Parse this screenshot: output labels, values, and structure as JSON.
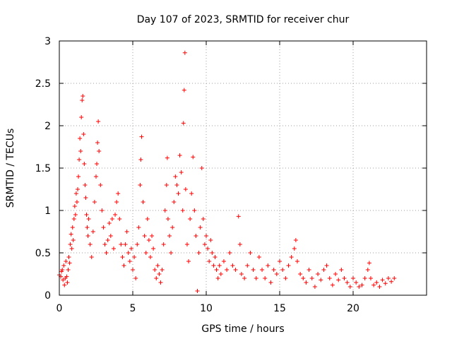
{
  "chart_data": {
    "type": "scatter",
    "title": "Day 107 of 2023, SRMTID for receiver chur",
    "xlabel": "GPS time / hours",
    "ylabel": "SRMTID / TECUs",
    "xlim": [
      0,
      25
    ],
    "ylim": [
      0,
      3
    ],
    "xticks": [
      0,
      5,
      10,
      15,
      20
    ],
    "yticks": [
      0,
      0.5,
      1,
      1.5,
      2,
      2.5,
      3
    ],
    "xtick_labels": [
      "0",
      "5",
      "10",
      "15",
      "20"
    ],
    "ytick_labels": [
      "0",
      "0.5",
      "1",
      "1.5",
      "2",
      "2.5",
      "3"
    ],
    "grid": true,
    "marker": "+",
    "color": "#ff0000",
    "series": [
      {
        "name": "SRMTID",
        "points": [
          [
            0.0,
            0.24
          ],
          [
            0.1,
            0.22
          ],
          [
            0.15,
            0.28
          ],
          [
            0.2,
            0.3
          ],
          [
            0.25,
            0.18
          ],
          [
            0.3,
            0.35
          ],
          [
            0.35,
            0.12
          ],
          [
            0.4,
            0.2
          ],
          [
            0.45,
            0.4
          ],
          [
            0.5,
            0.22
          ],
          [
            0.55,
            0.15
          ],
          [
            0.6,
            0.3
          ],
          [
            0.65,
            0.45
          ],
          [
            0.7,
            0.38
          ],
          [
            0.75,
            0.6
          ],
          [
            0.8,
            0.72
          ],
          [
            0.85,
            0.55
          ],
          [
            0.9,
            0.8
          ],
          [
            0.95,
            0.65
          ],
          [
            1.0,
            0.9
          ],
          [
            1.05,
            1.05
          ],
          [
            1.1,
            0.95
          ],
          [
            1.15,
            1.2
          ],
          [
            1.2,
            1.1
          ],
          [
            1.25,
            1.25
          ],
          [
            1.3,
            1.4
          ],
          [
            1.35,
            1.6
          ],
          [
            1.4,
            1.85
          ],
          [
            1.45,
            1.7
          ],
          [
            1.5,
            2.1
          ],
          [
            1.55,
            2.3
          ],
          [
            1.6,
            2.35
          ],
          [
            1.65,
            1.9
          ],
          [
            1.7,
            1.55
          ],
          [
            1.75,
            1.3
          ],
          [
            1.8,
            1.15
          ],
          [
            1.85,
            0.95
          ],
          [
            1.9,
            0.8
          ],
          [
            1.95,
            0.7
          ],
          [
            2.0,
            0.9
          ],
          [
            2.1,
            0.6
          ],
          [
            2.2,
            0.45
          ],
          [
            2.3,
            0.75
          ],
          [
            2.4,
            1.1
          ],
          [
            2.5,
            1.4
          ],
          [
            2.55,
            1.55
          ],
          [
            2.6,
            1.8
          ],
          [
            2.65,
            2.05
          ],
          [
            2.7,
            1.7
          ],
          [
            2.8,
            1.3
          ],
          [
            2.9,
            1.0
          ],
          [
            3.0,
            0.8
          ],
          [
            3.1,
            0.6
          ],
          [
            3.2,
            0.5
          ],
          [
            3.3,
            0.65
          ],
          [
            3.4,
            0.85
          ],
          [
            3.5,
            0.7
          ],
          [
            3.6,
            0.9
          ],
          [
            3.7,
            0.55
          ],
          [
            3.8,
            0.95
          ],
          [
            3.9,
            1.1
          ],
          [
            4.0,
            1.2
          ],
          [
            4.1,
            0.9
          ],
          [
            4.2,
            0.6
          ],
          [
            4.3,
            0.45
          ],
          [
            4.4,
            0.35
          ],
          [
            4.5,
            0.6
          ],
          [
            4.6,
            0.75
          ],
          [
            4.7,
            0.5
          ],
          [
            4.8,
            0.4
          ],
          [
            4.9,
            0.55
          ],
          [
            5.0,
            0.3
          ],
          [
            5.1,
            0.45
          ],
          [
            5.2,
            0.2
          ],
          [
            5.3,
            0.6
          ],
          [
            5.4,
            0.8
          ],
          [
            5.5,
            1.3
          ],
          [
            5.55,
            1.6
          ],
          [
            5.6,
            1.87
          ],
          [
            5.7,
            1.1
          ],
          [
            5.8,
            0.7
          ],
          [
            5.9,
            0.5
          ],
          [
            6.0,
            0.9
          ],
          [
            6.1,
            0.65
          ],
          [
            6.2,
            0.45
          ],
          [
            6.3,
            0.7
          ],
          [
            6.4,
            0.55
          ],
          [
            6.5,
            0.3
          ],
          [
            6.6,
            0.2
          ],
          [
            6.7,
            0.35
          ],
          [
            6.8,
            0.25
          ],
          [
            6.9,
            0.15
          ],
          [
            7.0,
            0.3
          ],
          [
            7.1,
            0.6
          ],
          [
            7.2,
            1.0
          ],
          [
            7.3,
            1.3
          ],
          [
            7.35,
            1.62
          ],
          [
            7.4,
            0.9
          ],
          [
            7.5,
            0.7
          ],
          [
            7.6,
            0.5
          ],
          [
            7.7,
            0.8
          ],
          [
            7.8,
            1.1
          ],
          [
            7.9,
            1.4
          ],
          [
            8.0,
            1.3
          ],
          [
            8.1,
            1.2
          ],
          [
            8.2,
            1.65
          ],
          [
            8.3,
            1.45
          ],
          [
            8.4,
            1.0
          ],
          [
            8.45,
            2.03
          ],
          [
            8.5,
            2.42
          ],
          [
            8.55,
            2.86
          ],
          [
            8.6,
            1.25
          ],
          [
            8.7,
            0.6
          ],
          [
            8.8,
            0.4
          ],
          [
            8.9,
            0.9
          ],
          [
            9.0,
            1.2
          ],
          [
            9.1,
            1.63
          ],
          [
            9.2,
            1.0
          ],
          [
            9.3,
            0.7
          ],
          [
            9.4,
            0.05
          ],
          [
            9.5,
            0.5
          ],
          [
            9.6,
            0.8
          ],
          [
            9.7,
            1.5
          ],
          [
            9.8,
            0.9
          ],
          [
            9.9,
            0.6
          ],
          [
            10.0,
            0.7
          ],
          [
            10.1,
            0.55
          ],
          [
            10.2,
            0.4
          ],
          [
            10.3,
            0.65
          ],
          [
            10.4,
            0.5
          ],
          [
            10.5,
            0.35
          ],
          [
            10.6,
            0.45
          ],
          [
            10.7,
            0.3
          ],
          [
            10.8,
            0.2
          ],
          [
            10.9,
            0.35
          ],
          [
            11.0,
            0.25
          ],
          [
            11.2,
            0.4
          ],
          [
            11.4,
            0.3
          ],
          [
            11.6,
            0.5
          ],
          [
            11.8,
            0.35
          ],
          [
            12.0,
            0.3
          ],
          [
            12.2,
            0.93
          ],
          [
            12.3,
            0.6
          ],
          [
            12.4,
            0.25
          ],
          [
            12.6,
            0.2
          ],
          [
            12.8,
            0.35
          ],
          [
            13.0,
            0.5
          ],
          [
            13.2,
            0.3
          ],
          [
            13.4,
            0.2
          ],
          [
            13.6,
            0.45
          ],
          [
            13.8,
            0.3
          ],
          [
            14.0,
            0.2
          ],
          [
            14.2,
            0.35
          ],
          [
            14.4,
            0.15
          ],
          [
            14.6,
            0.3
          ],
          [
            14.8,
            0.25
          ],
          [
            15.0,
            0.4
          ],
          [
            15.2,
            0.3
          ],
          [
            15.4,
            0.2
          ],
          [
            15.6,
            0.35
          ],
          [
            15.8,
            0.45
          ],
          [
            16.0,
            0.55
          ],
          [
            16.1,
            0.65
          ],
          [
            16.2,
            0.4
          ],
          [
            16.4,
            0.25
          ],
          [
            16.6,
            0.2
          ],
          [
            16.8,
            0.15
          ],
          [
            17.0,
            0.3
          ],
          [
            17.2,
            0.2
          ],
          [
            17.4,
            0.1
          ],
          [
            17.6,
            0.25
          ],
          [
            17.8,
            0.18
          ],
          [
            18.0,
            0.3
          ],
          [
            18.2,
            0.35
          ],
          [
            18.4,
            0.2
          ],
          [
            18.6,
            0.12
          ],
          [
            18.8,
            0.25
          ],
          [
            19.0,
            0.18
          ],
          [
            19.2,
            0.3
          ],
          [
            19.4,
            0.2
          ],
          [
            19.6,
            0.15
          ],
          [
            19.8,
            0.1
          ],
          [
            20.0,
            0.2
          ],
          [
            20.2,
            0.15
          ],
          [
            20.4,
            0.1
          ],
          [
            20.6,
            0.12
          ],
          [
            20.8,
            0.2
          ],
          [
            21.0,
            0.3
          ],
          [
            21.1,
            0.38
          ],
          [
            21.2,
            0.2
          ],
          [
            21.4,
            0.12
          ],
          [
            21.6,
            0.15
          ],
          [
            21.8,
            0.1
          ],
          [
            22.0,
            0.18
          ],
          [
            22.2,
            0.14
          ],
          [
            22.4,
            0.2
          ],
          [
            22.6,
            0.16
          ],
          [
            22.8,
            0.2
          ]
        ]
      }
    ]
  }
}
